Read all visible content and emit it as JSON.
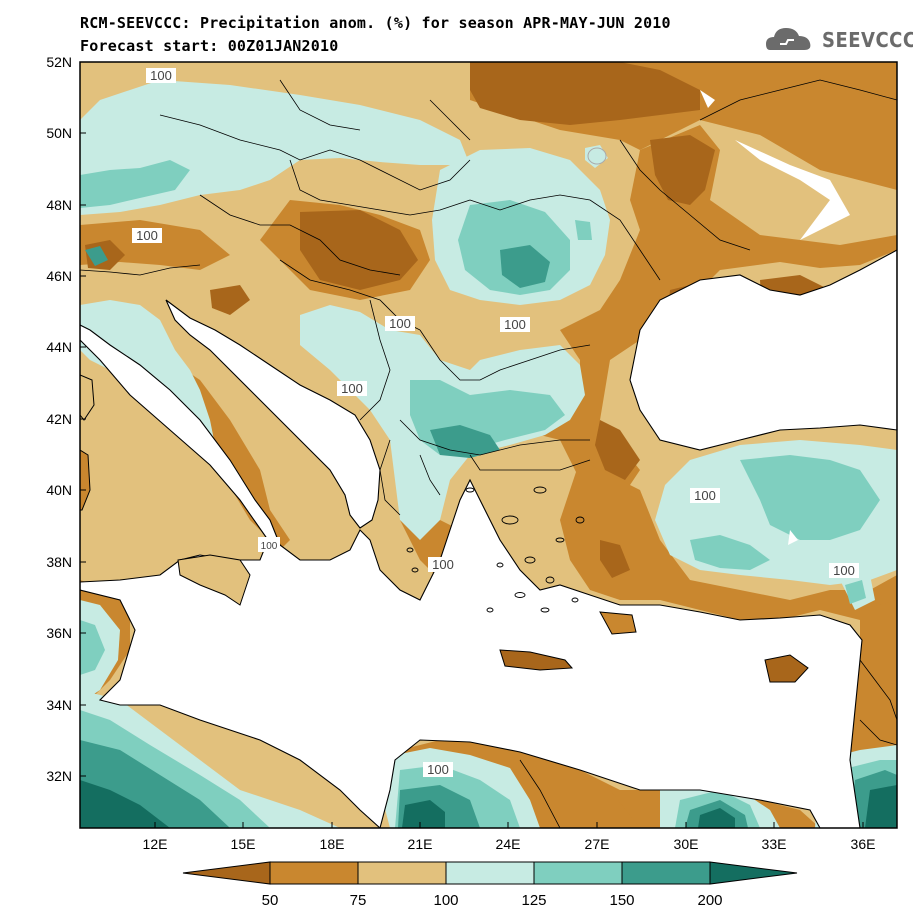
{
  "title_line1": "RCM-SEEVCCC: Precipitation anom. (%) for season APR-MAY-JUN 2010",
  "title_line2": "Forecast start: 00Z01JAN2010",
  "logo_text": "SEEVCCC",
  "logo_icon": "cloud-icon",
  "lat_labels": [
    "52N",
    "50N",
    "48N",
    "46N",
    "44N",
    "42N",
    "40N",
    "38N",
    "36N",
    "34N",
    "32N"
  ],
  "lon_labels": [
    "12E",
    "15E",
    "18E",
    "21E",
    "24E",
    "27E",
    "30E",
    "33E",
    "36E"
  ],
  "colorbar": {
    "labels": [
      "50",
      "75",
      "100",
      "125",
      "150",
      "200"
    ],
    "colors": [
      "#a8661b",
      "#c9872f",
      "#e2c17d",
      "#c7ebe3",
      "#7fcfbf",
      "#3c9c8c",
      "#146e60"
    ]
  },
  "contour_labels": [
    "100",
    "100",
    "100",
    "100",
    "100",
    "100",
    "100",
    "100",
    "100",
    "100"
  ],
  "palette": {
    "very_dry": "#a8661b",
    "dry": "#c9872f",
    "slightly_dry": "#e2c17d",
    "slightly_wet": "#c7ebe3",
    "wet": "#7fcfbf",
    "very_wet": "#3c9c8c",
    "extreme_wet": "#146e60",
    "sea": "#ffffff"
  }
}
